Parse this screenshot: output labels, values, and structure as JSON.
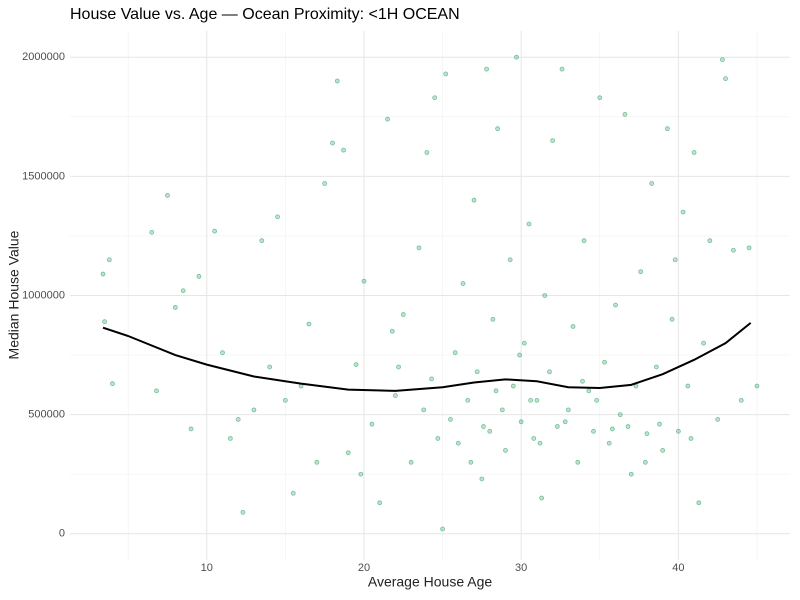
{
  "chart_data": {
    "type": "scatter",
    "title": "House Value vs. Age — Ocean Proximity: <1H OCEAN",
    "x_label": "Average House Age",
    "y_label": "Median House Value",
    "xlim": [
      1.3,
      47.1
    ],
    "ylim": [
      -110000,
      2110000
    ],
    "xticks": [
      10,
      20,
      30,
      40
    ],
    "yticks": [
      0,
      500000,
      1000000,
      1500000,
      2000000
    ],
    "x_minor_ticks": [
      5,
      15,
      25,
      35,
      45
    ],
    "y_minor_ticks": [
      250000,
      750000,
      1250000,
      1750000
    ],
    "grid": true,
    "color": "#2ca25f",
    "x": [
      3.5,
      3.8,
      4.0,
      3.4,
      6.5,
      7.5,
      6.8,
      8.0,
      9.5,
      10.5,
      11.0,
      12.3,
      12.0,
      13.5,
      14.5,
      15.0,
      15.5,
      16.5,
      17.5,
      18.3,
      18.0,
      18.7,
      19.0,
      19.5,
      20.0,
      20.5,
      21.0,
      21.5,
      22.0,
      22.5,
      23.0,
      23.5,
      24.0,
      24.5,
      25.0,
      25.2,
      25.5,
      25.8,
      26.0,
      26.3,
      26.6,
      27.0,
      27.2,
      27.5,
      27.8,
      28.0,
      28.2,
      28.5,
      28.8,
      29.0,
      29.3,
      29.5,
      29.7,
      30.0,
      30.2,
      30.5,
      30.8,
      31.0,
      31.3,
      31.5,
      31.8,
      32.0,
      32.3,
      32.6,
      33.0,
      33.3,
      33.6,
      34.0,
      34.3,
      34.6,
      35.0,
      35.3,
      35.6,
      36.0,
      36.3,
      36.6,
      37.0,
      37.3,
      37.6,
      38.0,
      38.3,
      38.6,
      39.0,
      39.3,
      39.6,
      40.0,
      40.3,
      40.6,
      41.0,
      41.3,
      41.6,
      42.0,
      42.5,
      42.8,
      43.0,
      43.5,
      44.0,
      44.5,
      45.0,
      22.2,
      23.8,
      24.7,
      26.8,
      28.4,
      29.9,
      31.2,
      32.8,
      34.8,
      36.8,
      38.8,
      33.9,
      27.6,
      30.6,
      35.8,
      21.8,
      17.0,
      16.0,
      14.0,
      13.0,
      11.5,
      9.0,
      8.5,
      19.8,
      24.3,
      37.9,
      39.8,
      40.8
    ],
    "values": [
      890000,
      1150000,
      630000,
      1090000,
      1265000,
      1420000,
      600000,
      950000,
      1080000,
      1270000,
      760000,
      90000,
      480000,
      1230000,
      1330000,
      560000,
      170000,
      880000,
      1470000,
      1900000,
      1640000,
      1610000,
      340000,
      710000,
      1060000,
      460000,
      130000,
      1740000,
      580000,
      920000,
      300000,
      1200000,
      1600000,
      1830000,
      20000,
      1930000,
      480000,
      760000,
      380000,
      1050000,
      560000,
      1400000,
      680000,
      230000,
      1950000,
      430000,
      900000,
      1700000,
      520000,
      350000,
      1150000,
      620000,
      2000000,
      470000,
      800000,
      1300000,
      400000,
      560000,
      150000,
      1000000,
      680000,
      1650000,
      450000,
      1950000,
      520000,
      870000,
      300000,
      1230000,
      600000,
      430000,
      1830000,
      720000,
      380000,
      960000,
      500000,
      1760000,
      250000,
      620000,
      1100000,
      420000,
      1470000,
      700000,
      350000,
      1700000,
      900000,
      430000,
      1350000,
      620000,
      1600000,
      130000,
      800000,
      1230000,
      480000,
      1990000,
      1910000,
      1190000,
      560000,
      1200000,
      620000,
      700000,
      520000,
      400000,
      300000,
      600000,
      750000,
      380000,
      470000,
      560000,
      450000,
      460000,
      640000,
      450000,
      560000,
      440000,
      850000,
      300000,
      620000,
      700000,
      520000,
      400000,
      440000,
      1020000,
      250000,
      650000,
      300000,
      1150000,
      400000
    ],
    "smooth": {
      "color": "#000000",
      "x": [
        3.4,
        5,
        8,
        10,
        13,
        16,
        19,
        22,
        25,
        27,
        29,
        31,
        33,
        35,
        37,
        39,
        41,
        43,
        44.6
      ],
      "values": [
        865000,
        830000,
        750000,
        710000,
        660000,
        630000,
        605000,
        600000,
        615000,
        635000,
        648000,
        640000,
        615000,
        612000,
        625000,
        670000,
        730000,
        800000,
        885000
      ]
    }
  }
}
